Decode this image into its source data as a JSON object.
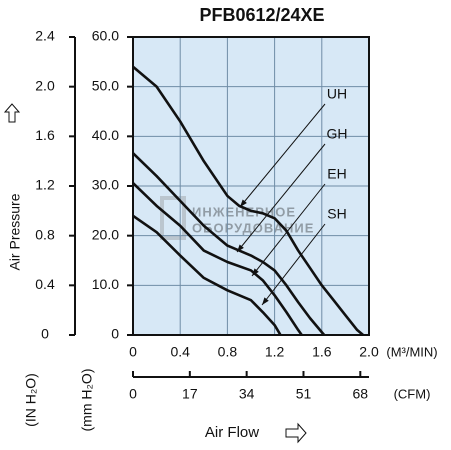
{
  "chart_data": {
    "type": "line",
    "title": "PFB0612/24XE",
    "xlabel": "Air Flow",
    "xunit": "(M³/MIN)",
    "x2unit": "(CFM)",
    "ylabel": "Air Pressure",
    "yunit": "(mm H₂O)",
    "y2unit": "(IN H₂O)",
    "xlim": [
      0,
      2.0
    ],
    "xticks": [
      0,
      0.4,
      0.8,
      1.2,
      1.6,
      {
        "value": 2.0,
        "label": "2.0"
      }
    ],
    "x2lim": [
      0,
      70.6
    ],
    "x2ticks": [
      0,
      17,
      34,
      51,
      68
    ],
    "ylim": [
      0,
      60
    ],
    "yticks": [
      0,
      {
        "value": 10,
        "label": "10.0"
      },
      {
        "value": 20,
        "label": "20.0"
      },
      {
        "value": 30,
        "label": "30.0"
      },
      {
        "value": 40,
        "label": "40.0"
      },
      {
        "value": 50,
        "label": "50.0"
      },
      {
        "value": 60,
        "label": "60.0"
      }
    ],
    "y2lim": [
      0,
      2.4
    ],
    "y2ticks": [
      0,
      0.4,
      0.8,
      1.2,
      1.6,
      {
        "value": 2.0,
        "label": "2.0"
      },
      2.4
    ],
    "grid": true,
    "background": "#d7e8f6",
    "series": [
      {
        "name": "UH",
        "color": "#111111",
        "x": [
          0,
          0.2,
          0.4,
          0.6,
          0.8,
          0.9,
          1.0,
          1.1,
          1.2,
          1.3,
          1.4,
          1.5,
          1.6,
          1.7,
          1.8,
          1.9,
          1.95
        ],
        "values": [
          54,
          50,
          43,
          35,
          28,
          26,
          25,
          24.5,
          23.5,
          21,
          17,
          13.5,
          10,
          7,
          4,
          1,
          0
        ]
      },
      {
        "name": "GH",
        "color": "#111111",
        "x": [
          0,
          0.2,
          0.4,
          0.6,
          0.8,
          0.9,
          1.0,
          1.1,
          1.2,
          1.3,
          1.4,
          1.5,
          1.62
        ],
        "values": [
          36.6,
          32,
          27,
          22,
          18,
          17,
          16,
          14.7,
          13,
          10,
          6.6,
          3.4,
          0
        ]
      },
      {
        "name": "EH",
        "color": "#111111",
        "x": [
          0,
          0.2,
          0.4,
          0.6,
          0.8,
          1.0,
          1.1,
          1.2,
          1.3,
          1.4,
          1.43
        ],
        "values": [
          30.6,
          26,
          22,
          17,
          14.7,
          13,
          11,
          8,
          4.6,
          1,
          0
        ]
      },
      {
        "name": "SH",
        "color": "#111111",
        "x": [
          0,
          0.2,
          0.4,
          0.6,
          0.8,
          1.0,
          1.1,
          1.2,
          1.25
        ],
        "values": [
          24,
          20.7,
          16,
          11.5,
          9,
          7,
          4.6,
          2,
          0
        ]
      }
    ],
    "watermark": [
      "ИНЖЕНЕРНОЕ",
      "ОБОРУДОВАНИЕ"
    ]
  }
}
